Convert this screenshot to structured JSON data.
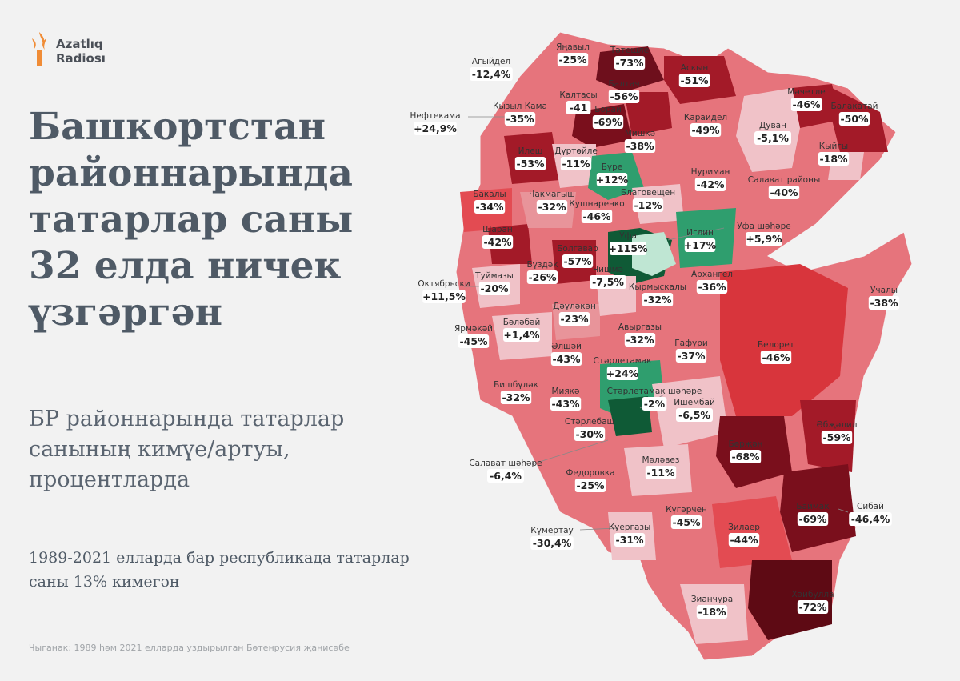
{
  "logo": {
    "line1": "Azatlıq",
    "line2": "Radiosı",
    "brand_color": "#f08c36"
  },
  "title": "Башкортстан районнарында татарлар саны 32 елда ничек үзгәргән",
  "subtitle": "БР районнарында татарлар санының кимүе/артуы, процентларда",
  "note": "1989-2021 елларда бар республикада татарлар саны 13% кимегән",
  "source": "Чыганак: 1989 һәм 2021 елларда уздырылган Бөтенрусия җанисәбе",
  "colors": {
    "growth": "#2f9e6e",
    "growth_strong": "#0f5a36",
    "decline_light": "#f0c2c8",
    "decline_mid": "#dc3f45",
    "decline_strong": "#7a0f1c",
    "land": "#e6747c"
  },
  "regions": [
    {
      "name": "Яңавыл",
      "value": "-25%"
    },
    {
      "name": "Тәтешле",
      "value": "-73%"
    },
    {
      "name": "Агыйдел",
      "value": "-12,4%"
    },
    {
      "name": "Аскын",
      "value": "-51%"
    },
    {
      "name": "Калтасы",
      "value": "-41"
    },
    {
      "name": "Балтач",
      "value": "-56%"
    },
    {
      "name": "Мәчетле",
      "value": "-46%"
    },
    {
      "name": "Балакатай",
      "value": "-50%"
    },
    {
      "name": "Кызыл Кама",
      "value": "-35%"
    },
    {
      "name": "Борай",
      "value": "-69%"
    },
    {
      "name": "Нефтекама",
      "value": "+24,9%"
    },
    {
      "name": "Караидел",
      "value": "-49%"
    },
    {
      "name": "Дуван",
      "value": "-5,1%"
    },
    {
      "name": "Мишкә",
      "value": "-38%"
    },
    {
      "name": "Кыйгы",
      "value": "-18%"
    },
    {
      "name": "Илеш",
      "value": "-53%"
    },
    {
      "name": "Дүртөйле",
      "value": "-11%"
    },
    {
      "name": "Бүре",
      "value": "+12%"
    },
    {
      "name": "Нуриман",
      "value": "-42%"
    },
    {
      "name": "Салават районы",
      "value": "-40%"
    },
    {
      "name": "Бакалы",
      "value": "-34%"
    },
    {
      "name": "Чакмагыш",
      "value": "-32%"
    },
    {
      "name": "Благовещен",
      "value": "-12%"
    },
    {
      "name": "Кушнаренко",
      "value": "-46%"
    },
    {
      "name": "Уфа шәһәре",
      "value": "+5,9%"
    },
    {
      "name": "Шаран",
      "value": "-42%"
    },
    {
      "name": "Уфа",
      "value": "+115%"
    },
    {
      "name": "Иглин",
      "value": "+17%"
    },
    {
      "name": "Болгавар",
      "value": "-57%"
    },
    {
      "name": "Бүздәк",
      "value": "-26%"
    },
    {
      "name": "Чишмә",
      "value": "-7,5%"
    },
    {
      "name": "Кырмыскалы",
      "value": "-32%"
    },
    {
      "name": "Архангел",
      "value": "-36%"
    },
    {
      "name": "Октябрьски",
      "value": "+11,5%"
    },
    {
      "name": "Туймазы",
      "value": "-20%"
    },
    {
      "name": "Учалы",
      "value": "-38%"
    },
    {
      "name": "Дәүләкән",
      "value": "-23%"
    },
    {
      "name": "Бәләбәй",
      "value": "+1,4%"
    },
    {
      "name": "Ярмәкәй",
      "value": "-45%"
    },
    {
      "name": "Әлшәй",
      "value": "-43%"
    },
    {
      "name": "Авыргазы",
      "value": "-32%"
    },
    {
      "name": "Гафури",
      "value": "-37%"
    },
    {
      "name": "Белорет",
      "value": "-46%"
    },
    {
      "name": "Стәрлетамак",
      "value": "+24%"
    },
    {
      "name": "Бишбүләк",
      "value": "-32%"
    },
    {
      "name": "Миякә",
      "value": "-43%"
    },
    {
      "name": "Стәрлетамак шәһәре",
      "value": "-2%"
    },
    {
      "name": "Ишембай",
      "value": "-6,5%"
    },
    {
      "name": "Стәрлебаш",
      "value": "-30%"
    },
    {
      "name": "Әбҗәлил",
      "value": "-59%"
    },
    {
      "name": "Бөрҗән",
      "value": "-68%"
    },
    {
      "name": "Салават шәһәре",
      "value": "-6,4%"
    },
    {
      "name": "Федоровка",
      "value": "-25%"
    },
    {
      "name": "Мәләвез",
      "value": "-11%"
    },
    {
      "name": "Баймак",
      "value": "-69%"
    },
    {
      "name": "Сибай",
      "value": "-46,4%"
    },
    {
      "name": "Күгәрчен",
      "value": "-45%"
    },
    {
      "name": "Зилаер",
      "value": "-44%"
    },
    {
      "name": "Күмертау",
      "value": "-30,4%"
    },
    {
      "name": "Куергазы",
      "value": "-31%"
    },
    {
      "name": "Зианчура",
      "value": "-18%"
    },
    {
      "name": "Хәйбулла",
      "value": "-72%"
    }
  ]
}
